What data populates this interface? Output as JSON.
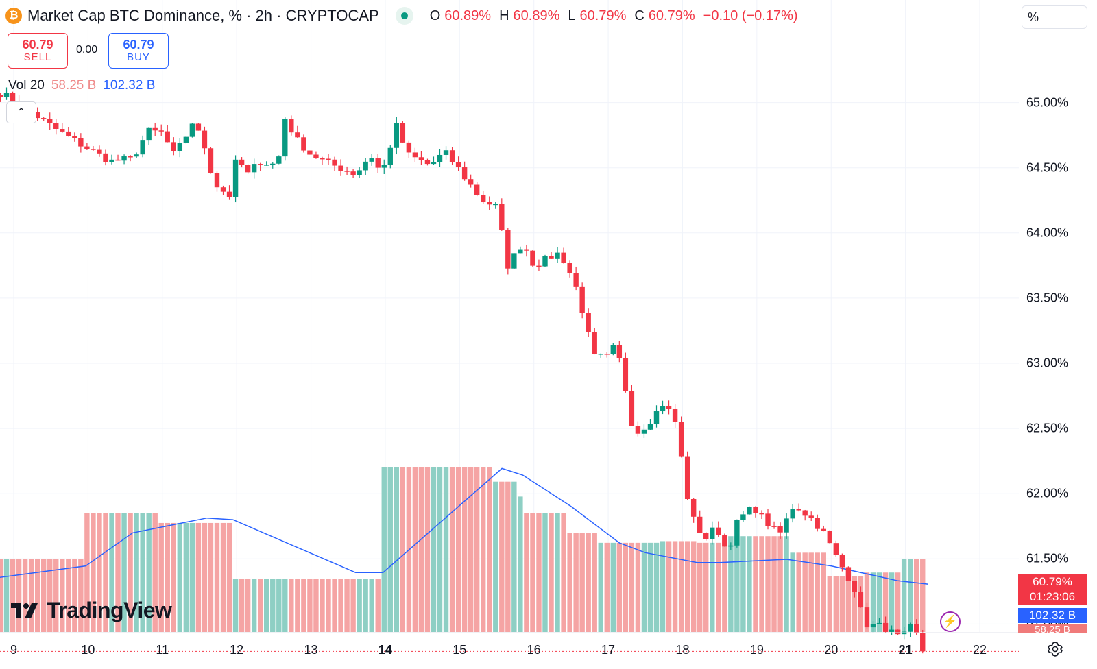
{
  "header": {
    "logo_letter": "₿",
    "title": "Market Cap BTC Dominance, % · 2h · CRYPTOCAP",
    "ohlc": {
      "o_label": "O",
      "o_value": "60.89%",
      "h_label": "H",
      "h_value": "60.89%",
      "l_label": "L",
      "l_value": "60.79%",
      "c_label": "C",
      "c_value": "60.79%",
      "change": "−0.10 (−0.17%)"
    }
  },
  "trade": {
    "sell_price": "60.79",
    "sell_label": "SELL",
    "spread": "0.00",
    "buy_price": "60.79",
    "buy_label": "BUY"
  },
  "volume_legend": {
    "label": "Vol 20",
    "sell_vol": "58.25 B",
    "buy_vol": "102.32 B"
  },
  "scale_button": "%",
  "price_tags": {
    "last_price": "60.79%",
    "countdown": "01:23:06",
    "volume_buy": "102.32 B",
    "volume_sell": "58.25 B"
  },
  "watermark": "TradingView",
  "colors": {
    "up": "#089981",
    "down": "#f23645",
    "vol_up": "#8ecfc4",
    "vol_down": "#f5a4a4",
    "vol_ma": "#2962ff"
  },
  "chart_data": {
    "type": "candlestick",
    "y_axis_labels": [
      "65.00%",
      "64.50%",
      "64.00%",
      "63.50%",
      "63.00%",
      "62.50%",
      "62.00%",
      "61.50%",
      "61.00%"
    ],
    "x_axis_labels": [
      {
        "label": "9",
        "bold": false
      },
      {
        "label": "10",
        "bold": false
      },
      {
        "label": "11",
        "bold": false
      },
      {
        "label": "12",
        "bold": false
      },
      {
        "label": "13",
        "bold": false
      },
      {
        "label": "14",
        "bold": true
      },
      {
        "label": "15",
        "bold": false
      },
      {
        "label": "16",
        "bold": false
      },
      {
        "label": "17",
        "bold": false
      },
      {
        "label": "18",
        "bold": false
      },
      {
        "label": "19",
        "bold": false
      },
      {
        "label": "20",
        "bold": false
      },
      {
        "label": "21",
        "bold": true
      },
      {
        "label": "22",
        "bold": false
      }
    ],
    "ylim": [
      60.45,
      65.55
    ],
    "xlim": [
      8.8,
      22.4
    ],
    "grid": true,
    "last_price": 60.79,
    "candle_step_days": 0.0833,
    "path_start": [
      8.82,
      65.07
    ],
    "path_points": [
      [
        9.0,
        65.02
      ],
      [
        9.5,
        64.82
      ],
      [
        9.9,
        64.68
      ],
      [
        10.3,
        64.55
      ],
      [
        10.6,
        64.57
      ],
      [
        10.8,
        64.78
      ],
      [
        11.0,
        64.77
      ],
      [
        11.15,
        64.6
      ],
      [
        11.3,
        64.72
      ],
      [
        11.4,
        64.85
      ],
      [
        11.55,
        64.7
      ],
      [
        11.7,
        64.38
      ],
      [
        11.9,
        64.28
      ],
      [
        12.0,
        64.58
      ],
      [
        12.15,
        64.45
      ],
      [
        12.3,
        64.55
      ],
      [
        12.55,
        64.52
      ],
      [
        12.65,
        64.88
      ],
      [
        12.8,
        64.72
      ],
      [
        13.0,
        64.6
      ],
      [
        13.3,
        64.52
      ],
      [
        13.6,
        64.45
      ],
      [
        13.8,
        64.6
      ],
      [
        13.95,
        64.45
      ],
      [
        14.15,
        64.82
      ],
      [
        14.3,
        64.6
      ],
      [
        14.6,
        64.52
      ],
      [
        14.8,
        64.62
      ],
      [
        15.0,
        64.48
      ],
      [
        15.3,
        64.25
      ],
      [
        15.5,
        64.2
      ],
      [
        15.65,
        63.75
      ],
      [
        15.85,
        63.93
      ],
      [
        16.0,
        63.75
      ],
      [
        16.35,
        63.85
      ],
      [
        16.55,
        63.62
      ],
      [
        16.7,
        63.3
      ],
      [
        16.8,
        63.05
      ],
      [
        17.0,
        63.05
      ],
      [
        17.1,
        63.15
      ],
      [
        17.2,
        62.9
      ],
      [
        17.35,
        62.45
      ],
      [
        17.55,
        62.55
      ],
      [
        17.75,
        62.7
      ],
      [
        17.9,
        62.55
      ],
      [
        18.0,
        62.22
      ],
      [
        18.1,
        61.85
      ],
      [
        18.3,
        61.65
      ],
      [
        18.45,
        61.75
      ],
      [
        18.6,
        61.55
      ],
      [
        18.75,
        61.8
      ],
      [
        18.95,
        61.9
      ],
      [
        19.1,
        61.8
      ],
      [
        19.3,
        61.68
      ],
      [
        19.5,
        61.92
      ],
      [
        19.75,
        61.8
      ],
      [
        19.9,
        61.7
      ],
      [
        20.1,
        61.48
      ],
      [
        20.3,
        61.3
      ],
      [
        20.45,
        61.0
      ],
      [
        20.7,
        60.98
      ],
      [
        20.95,
        60.88
      ],
      [
        21.05,
        60.98
      ],
      [
        21.25,
        60.85
      ],
      [
        21.3,
        60.79
      ]
    ],
    "volume": {
      "scale_max": 1.0,
      "segments": [
        {
          "x0": 8.8,
          "x1": 9.97,
          "value": 0.44
        },
        {
          "x0": 9.97,
          "x1": 10.97,
          "value": 0.72
        },
        {
          "x0": 10.97,
          "x1": 11.97,
          "value": 0.66
        },
        {
          "x0": 11.97,
          "x1": 13.97,
          "value": 0.32
        },
        {
          "x0": 13.97,
          "x1": 15.47,
          "value": 1.0
        },
        {
          "x0": 15.47,
          "x1": 15.8,
          "value": 0.91
        },
        {
          "x0": 15.8,
          "x1": 15.9,
          "value": 0.82
        },
        {
          "x0": 15.9,
          "x1": 16.47,
          "value": 0.72
        },
        {
          "x0": 16.47,
          "x1": 16.85,
          "value": 0.6
        },
        {
          "x0": 16.85,
          "x1": 17.65,
          "value": 0.54
        },
        {
          "x0": 17.65,
          "x1": 18.2,
          "value": 0.55
        },
        {
          "x0": 18.2,
          "x1": 18.5,
          "value": 0.54
        },
        {
          "x0": 18.5,
          "x1": 19.45,
          "value": 0.58
        },
        {
          "x0": 19.45,
          "x1": 19.95,
          "value": 0.48
        },
        {
          "x0": 19.95,
          "x1": 20.45,
          "value": 0.34
        },
        {
          "x0": 20.45,
          "x1": 20.9,
          "value": 0.36
        },
        {
          "x0": 20.9,
          "x1": 21.3,
          "value": 0.44
        }
      ],
      "ma_line": [
        [
          8.8,
          0.33
        ],
        [
          9.97,
          0.4
        ],
        [
          10.6,
          0.6
        ],
        [
          11.6,
          0.69
        ],
        [
          11.95,
          0.68
        ],
        [
          13.6,
          0.36
        ],
        [
          13.97,
          0.36
        ],
        [
          15.57,
          0.99
        ],
        [
          15.85,
          0.95
        ],
        [
          16.5,
          0.76
        ],
        [
          17.15,
          0.54
        ],
        [
          17.5,
          0.48
        ],
        [
          18.2,
          0.42
        ],
        [
          18.5,
          0.42
        ],
        [
          19.4,
          0.44
        ],
        [
          20.0,
          0.4
        ],
        [
          20.9,
          0.31
        ],
        [
          21.3,
          0.29
        ]
      ]
    }
  }
}
